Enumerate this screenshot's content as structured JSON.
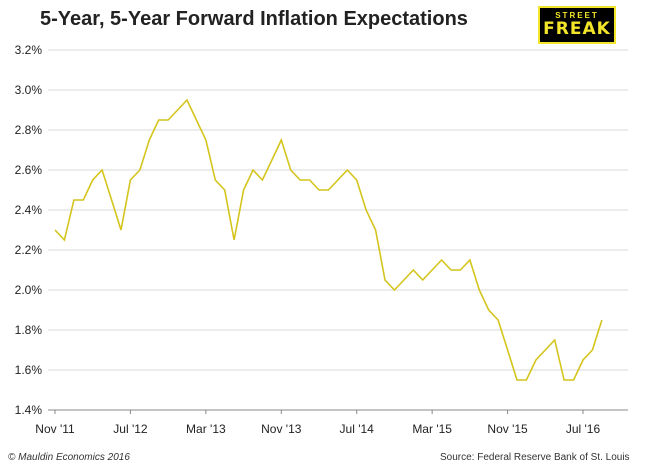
{
  "header": {
    "title": "5-Year, 5-Year Forward Inflation Expectations",
    "logo_top": "STREET",
    "logo_bottom": "FREAK"
  },
  "footer": {
    "copyright": "© Mauldin Economics 2016",
    "source": "Source: Federal Reserve Bank of St. Louis"
  },
  "colors": {
    "line": "#d4c41c",
    "grid": "#d9d9d9",
    "axis": "#888888",
    "logo_bg": "#000000",
    "logo_fg": "#f3e52a"
  },
  "chart_data": {
    "type": "line",
    "title": "5-Year, 5-Year Forward Inflation Expectations",
    "xlabel": "",
    "ylabel": "",
    "ylim": [
      1.4,
      3.2
    ],
    "grid": "horizontal",
    "legend": "none",
    "y_ticks": [
      "1.4%",
      "1.6%",
      "1.8%",
      "2.0%",
      "2.2%",
      "2.4%",
      "2.6%",
      "2.8%",
      "3.0%",
      "3.2%"
    ],
    "y_tick_values": [
      1.4,
      1.6,
      1.8,
      2.0,
      2.2,
      2.4,
      2.6,
      2.8,
      3.0,
      3.2
    ],
    "x_ticks": [
      "Nov '11",
      "Jul '12",
      "Mar '13",
      "Nov '13",
      "Jul '14",
      "Mar '15",
      "Nov '15",
      "Jul '16"
    ],
    "x_tick_dates": [
      "2011-11",
      "2012-07",
      "2013-03",
      "2013-11",
      "2014-07",
      "2015-03",
      "2015-11",
      "2016-07"
    ],
    "series": [
      {
        "x": [
          "2011-11",
          "2011-12",
          "2012-01",
          "2012-02",
          "2012-03",
          "2012-04",
          "2012-05",
          "2012-06",
          "2012-07",
          "2012-08",
          "2012-09",
          "2012-10",
          "2012-11",
          "2012-12",
          "2013-01",
          "2013-02",
          "2013-03",
          "2013-04",
          "2013-05",
          "2013-06",
          "2013-07",
          "2013-08",
          "2013-09",
          "2013-10",
          "2013-11",
          "2013-12",
          "2014-01",
          "2014-02",
          "2014-03",
          "2014-04",
          "2014-05",
          "2014-06",
          "2014-07",
          "2014-08",
          "2014-09",
          "2014-10",
          "2014-11",
          "2014-12",
          "2015-01",
          "2015-02",
          "2015-03",
          "2015-04",
          "2015-05",
          "2015-06",
          "2015-07",
          "2015-08",
          "2015-09",
          "2015-10",
          "2015-11",
          "2015-12",
          "2016-01",
          "2016-02",
          "2016-03",
          "2016-04",
          "2016-05",
          "2016-06",
          "2016-07",
          "2016-08",
          "2016-09"
        ],
        "values": [
          2.3,
          2.25,
          2.45,
          2.45,
          2.55,
          2.6,
          2.45,
          2.3,
          2.55,
          2.6,
          2.75,
          2.85,
          2.85,
          2.9,
          2.95,
          2.85,
          2.75,
          2.55,
          2.5,
          2.25,
          2.5,
          2.6,
          2.55,
          2.65,
          2.75,
          2.6,
          2.55,
          2.55,
          2.5,
          2.5,
          2.55,
          2.6,
          2.55,
          2.4,
          2.3,
          2.05,
          2.0,
          2.05,
          2.1,
          2.05,
          2.1,
          2.15,
          2.1,
          2.1,
          2.15,
          2.0,
          1.9,
          1.85,
          1.7,
          1.55,
          1.55,
          1.65,
          1.7,
          1.75,
          1.55,
          1.55,
          1.65,
          1.7,
          1.85
        ]
      }
    ]
  }
}
